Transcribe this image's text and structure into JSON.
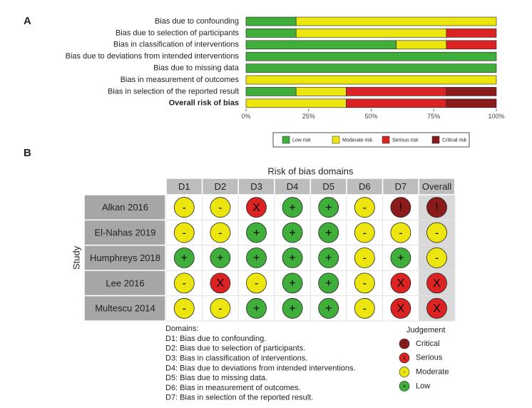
{
  "chart_data": [
    {
      "type": "bar",
      "orientation": "horizontal",
      "stacked": true,
      "panel_label": "A",
      "categories": [
        "Bias due to confounding",
        "Bias due to selection of participants",
        "Bias in classification of interventions",
        "Bias due to deviations from intended interventions",
        "Bias due to missing data",
        "Bias in measurement of outcomes",
        "Bias in selection of the reported result",
        "Overall risk of bias"
      ],
      "series": [
        {
          "name": "Low risk",
          "color": "#3fae3a",
          "values": [
            20,
            20,
            60,
            100,
            100,
            0,
            20,
            0
          ]
        },
        {
          "name": "Moderate risk",
          "color": "#ece60e",
          "values": [
            80,
            60,
            20,
            0,
            0,
            100,
            20,
            40
          ]
        },
        {
          "name": "Serious risk",
          "color": "#dc2323",
          "values": [
            0,
            20,
            20,
            0,
            0,
            0,
            40,
            40
          ]
        },
        {
          "name": "Critical risk",
          "color": "#8b1a1a",
          "values": [
            0,
            0,
            0,
            0,
            0,
            0,
            20,
            20
          ]
        }
      ],
      "xlim": [
        0,
        100
      ],
      "xticks": [
        {
          "value": 0,
          "label": "0%"
        },
        {
          "value": 25,
          "label": "25%"
        },
        {
          "value": 50,
          "label": "50%"
        },
        {
          "value": 75,
          "label": "75%"
        },
        {
          "value": 100,
          "label": "100%"
        }
      ],
      "legend": "bottom"
    },
    {
      "type": "traffic-light",
      "panel_label": "B",
      "title": "Risk of bias domains",
      "y_label": "Study",
      "columns": [
        "D1",
        "D2",
        "D3",
        "D4",
        "D5",
        "D6",
        "D7",
        "Overall"
      ],
      "rows": [
        "Alkan 2016",
        "El-Nahas 2019",
        "Humphreys 2018",
        "Lee 2016",
        "Multescu 2014"
      ],
      "cells": [
        [
          "-",
          "-",
          "X",
          "+",
          "+",
          "-",
          "!",
          "!"
        ],
        [
          "-",
          "-",
          "+",
          "+",
          "+",
          "-",
          "-",
          "-"
        ],
        [
          "+",
          "+",
          "+",
          "+",
          "+",
          "-",
          "+",
          "-"
        ],
        [
          "-",
          "X",
          "-",
          "+",
          "+",
          "-",
          "X",
          "X"
        ],
        [
          "-",
          "-",
          "+",
          "+",
          "+",
          "-",
          "X",
          "X"
        ]
      ],
      "notes_title": "Domains:",
      "notes": [
        "D1: Bias due to confounding.",
        "D2: Bias due to selection of participants.",
        "D3: Bias in classification of interventions.",
        "D4: Bias due to deviations from intended interventions.",
        "D5: Bias due to missing data.",
        "D6: Bias in measurement of outcomes.",
        "D7: Bias in selection of the reported result."
      ],
      "legend_title": "Judgement",
      "legend": [
        {
          "name": "Critical",
          "symbol": "!",
          "color": "#8b1a1a"
        },
        {
          "name": "Serious",
          "symbol": "x",
          "color": "#dc2323"
        },
        {
          "name": "Moderate",
          "symbol": "-",
          "color": "#ece60e"
        },
        {
          "name": "Low",
          "symbol": "+",
          "color": "#3fae3a"
        }
      ]
    }
  ]
}
